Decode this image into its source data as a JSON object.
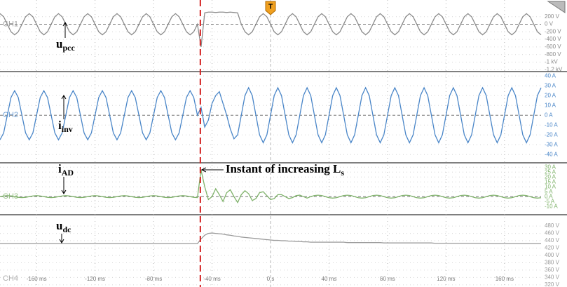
{
  "chart_data": {
    "type": "line",
    "x": [
      -185,
      -182.5,
      -180,
      -177.5,
      -175,
      -172.5,
      -170,
      -167.5,
      -165,
      -162.5,
      -160,
      -157.5,
      -155,
      -152.5,
      -150,
      -147.5,
      -145,
      -142.5,
      -140,
      -137.5,
      -135,
      -132.5,
      -130,
      -127.5,
      -125,
      -122.5,
      -120,
      -117.5,
      -115,
      -112.5,
      -110,
      -107.5,
      -105,
      -102.5,
      -100,
      -97.5,
      -95,
      -92.5,
      -90,
      -87.5,
      -85,
      -82.5,
      -80,
      -77.5,
      -75,
      -72.5,
      -70,
      -67.5,
      -65,
      -62.5,
      -60,
      -57.5,
      -55,
      -52.5,
      -50,
      -47.5,
      -45,
      -42.5,
      -40,
      -37.5,
      -35,
      -32.5,
      -30,
      -27.5,
      -25,
      -22.5,
      -20,
      -17.5,
      -15,
      -12.5,
      -10,
      -7.5,
      -5,
      -2.5,
      0,
      2.5,
      5,
      7.5,
      10,
      12.5,
      15,
      17.5,
      20,
      22.5,
      25,
      27.5,
      30,
      32.5,
      35,
      37.5,
      40,
      42.5,
      45,
      47.5,
      50,
      52.5,
      55,
      57.5,
      60,
      62.5,
      65,
      67.5,
      70,
      72.5,
      75,
      77.5,
      80,
      82.5,
      85,
      87.5,
      90,
      92.5,
      95,
      97.5,
      100,
      102.5,
      105,
      107.5,
      110,
      112.5,
      115,
      117.5,
      120,
      122.5,
      125,
      127.5,
      130,
      132.5,
      135,
      137.5,
      140,
      142.5,
      145,
      147.5,
      150,
      152.5,
      155,
      157.5,
      160,
      162.5,
      165,
      167.5,
      170,
      172.5,
      175,
      177.5,
      180,
      182.5,
      185
    ],
    "xlim": [
      -185,
      185
    ],
    "xticks": [
      {
        "value": -160,
        "label": "-160 ms"
      },
      {
        "value": -120,
        "label": "-120 ms"
      },
      {
        "value": -80,
        "label": "-80 ms"
      },
      {
        "value": -40,
        "label": "-40 ms"
      },
      {
        "value": 0,
        "label": "0 s"
      },
      {
        "value": 40,
        "label": "40 ms"
      },
      {
        "value": 80,
        "label": "80 ms"
      },
      {
        "value": 120,
        "label": "120 ms"
      },
      {
        "value": 160,
        "label": "160 ms"
      }
    ],
    "grid": true,
    "trigger_label": "T",
    "event_x": -48,
    "annotation": {
      "text": "Instant of increasing L",
      "sub": "s"
    },
    "series": [
      {
        "name": "CH1",
        "color": "#8a8a8a",
        "symbol": {
          "text": "u",
          "sub": "pcc"
        },
        "ylim": [
          -1250,
          640
        ],
        "yticks": [
          {
            "value": 200,
            "label": "200 V"
          },
          {
            "value": 0,
            "label": "0 V"
          },
          {
            "value": -200,
            "label": "-200 V"
          },
          {
            "value": -400,
            "label": "-400 V"
          },
          {
            "value": -600,
            "label": "-600 V"
          },
          {
            "value": -800,
            "label": "-800 V"
          },
          {
            "value": -1000,
            "label": "-1 kV"
          },
          {
            "value": -1200,
            "label": "-1.2 kV"
          }
        ],
        "values": [
          280,
          198,
          0,
          -198,
          -280,
          -198,
          0,
          198,
          280,
          198,
          0,
          -198,
          -280,
          -198,
          0,
          198,
          280,
          198,
          0,
          -198,
          -280,
          -198,
          0,
          198,
          280,
          198,
          0,
          -198,
          -280,
          -198,
          0,
          198,
          280,
          198,
          0,
          -198,
          -280,
          -198,
          0,
          198,
          280,
          198,
          0,
          -198,
          -280,
          -198,
          0,
          198,
          280,
          198,
          0,
          -198,
          -280,
          -198,
          0,
          -600,
          300,
          320,
          320,
          310,
          320,
          320,
          310,
          320,
          310,
          300,
          0,
          -198,
          -280,
          -198,
          0,
          198,
          280,
          198,
          0,
          -198,
          -280,
          -198,
          0,
          198,
          280,
          198,
          0,
          -198,
          -280,
          -198,
          0,
          198,
          280,
          198,
          0,
          -198,
          -280,
          -198,
          0,
          198,
          280,
          198,
          0,
          -198,
          -280,
          -198,
          0,
          198,
          280,
          198,
          0,
          -198,
          -280,
          -198,
          0,
          198,
          280,
          198,
          0,
          -198,
          -280,
          -198,
          0,
          198,
          280,
          198,
          0,
          -198,
          -280,
          -198,
          0,
          198,
          280,
          198,
          0,
          -198,
          -280,
          -198,
          0,
          198,
          280,
          198,
          0,
          -198,
          -280,
          -198,
          0,
          198,
          280,
          198,
          0,
          -198,
          -280
        ]
      },
      {
        "name": "CH2",
        "color": "#4a86c8",
        "symbol": {
          "text": "i",
          "sub": "inv"
        },
        "ylim": [
          -47,
          43
        ],
        "yticks": [
          {
            "value": 40,
            "label": "40 A"
          },
          {
            "value": 30,
            "label": "30 A"
          },
          {
            "value": 20,
            "label": "20 A"
          },
          {
            "value": 10,
            "label": "10 A"
          },
          {
            "value": 0,
            "label": "0 A"
          },
          {
            "value": -10,
            "label": "-10 A"
          },
          {
            "value": -20,
            "label": "-20 A"
          },
          {
            "value": -30,
            "label": "-30 A"
          },
          {
            "value": -40,
            "label": "-40 A"
          }
        ],
        "values": [
          -25,
          -18,
          0,
          18,
          25,
          18,
          0,
          -18,
          -25,
          -18,
          0,
          18,
          25,
          18,
          0,
          -18,
          -25,
          -18,
          0,
          18,
          25,
          18,
          0,
          -18,
          -25,
          -18,
          0,
          18,
          25,
          18,
          0,
          -18,
          -25,
          -18,
          0,
          18,
          25,
          18,
          0,
          -18,
          -25,
          -18,
          0,
          18,
          25,
          18,
          0,
          -18,
          -25,
          -18,
          0,
          18,
          25,
          18,
          0,
          8,
          -12,
          -5,
          12,
          20,
          24,
          12,
          0,
          -14,
          -24,
          -20,
          0,
          20,
          28,
          20,
          0,
          -20,
          -28,
          -20,
          0,
          20,
          28,
          20,
          0,
          -20,
          -28,
          -20,
          0,
          20,
          28,
          20,
          0,
          -20,
          -28,
          -20,
          0,
          20,
          28,
          20,
          0,
          -20,
          -28,
          -20,
          0,
          20,
          28,
          20,
          0,
          -20,
          -28,
          -20,
          0,
          20,
          28,
          20,
          0,
          -20,
          -28,
          -20,
          0,
          20,
          28,
          20,
          0,
          -20,
          -28,
          -20,
          0,
          20,
          28,
          20,
          0,
          -20,
          -28,
          -20,
          0,
          20,
          28,
          20,
          0,
          -20,
          -28,
          -20,
          0,
          20,
          28,
          20,
          0,
          -20,
          -28,
          -20,
          0,
          20,
          28
        ]
      },
      {
        "name": "CH3",
        "color": "#7fb26a",
        "symbol": {
          "text": "i",
          "sub": "AD"
        },
        "ylim": [
          -17,
          33
        ],
        "yticks": [
          {
            "value": 30,
            "label": "30 A"
          },
          {
            "value": 25,
            "label": "25 A"
          },
          {
            "value": 20,
            "label": "20 A"
          },
          {
            "value": 15,
            "label": "15 A"
          },
          {
            "value": 10,
            "label": "10 A"
          },
          {
            "value": 5,
            "label": "5 A"
          },
          {
            "value": 0,
            "label": "0 A"
          },
          {
            "value": -5,
            "label": "-5 A"
          },
          {
            "value": -10,
            "label": "-10 A"
          }
        ],
        "values": [
          0,
          0.7,
          1,
          0.7,
          0,
          -0.7,
          -1,
          -0.7,
          0,
          0.7,
          1,
          0.7,
          0,
          -0.7,
          -1,
          -0.7,
          0,
          0.7,
          1,
          0.7,
          0,
          -0.7,
          -1,
          -0.7,
          0,
          0.7,
          1,
          0.7,
          0,
          -0.7,
          -1,
          -0.7,
          0,
          0.7,
          1,
          0.7,
          0,
          -0.7,
          -1,
          -0.7,
          0,
          0.7,
          1,
          0.7,
          0,
          -0.7,
          -1,
          -0.7,
          0,
          0.7,
          1,
          0.7,
          0,
          -0.7,
          -1,
          27,
          10,
          -3,
          0,
          8,
          2,
          -5,
          4,
          7,
          0,
          -6,
          2,
          6,
          3,
          -4,
          -2,
          4,
          5,
          1,
          -3,
          -2,
          2,
          2,
          0,
          -2,
          -1,
          1,
          1.5,
          0,
          -1.5,
          0,
          1.1,
          1.5,
          1.1,
          0,
          -1.1,
          -1.5,
          -1.1,
          0,
          1.1,
          1.5,
          1.1,
          0,
          -1.1,
          -1.5,
          -1.1,
          0,
          1.1,
          1.5,
          1.1,
          0,
          -1.1,
          -1.5,
          -1.1,
          0,
          1.1,
          1.5,
          1.1,
          0,
          -1.1,
          -1.5,
          -1.1,
          0,
          1.1,
          1.5,
          1.1,
          0,
          -1.1,
          -1.5,
          -1.1,
          0,
          1.1,
          1.5,
          1.1,
          0,
          -1.1,
          -1.5,
          -1.1,
          0,
          1.1,
          1.5,
          1.1,
          0,
          -1.1,
          -1.5,
          -1.1,
          0,
          1.1,
          1.5,
          1.1,
          0,
          -1.1,
          -1.5,
          -1.1
        ]
      },
      {
        "name": "CH4",
        "color": "#9a9a9a",
        "symbol": {
          "text": "u",
          "sub": "dc"
        },
        "ylim": [
          314,
          507
        ],
        "yticks": [
          {
            "value": 480,
            "label": "480 V"
          },
          {
            "value": 460,
            "label": "460 V"
          },
          {
            "value": 440,
            "label": "440 V"
          },
          {
            "value": 420,
            "label": "420 V"
          },
          {
            "value": 400,
            "label": "400 V"
          },
          {
            "value": 380,
            "label": "380 V"
          },
          {
            "value": 360,
            "label": "360 V"
          },
          {
            "value": 340,
            "label": "340 V"
          },
          {
            "value": 320,
            "label": "320 V"
          }
        ],
        "values": [
          432,
          432,
          432,
          432,
          432,
          432,
          432,
          432,
          432,
          432,
          432,
          432,
          432,
          432,
          432,
          432,
          432,
          432,
          432,
          432,
          432,
          432,
          432,
          432,
          432,
          432,
          432,
          432,
          432,
          432,
          432,
          432,
          432,
          432,
          432,
          432,
          432,
          432,
          432,
          432,
          432,
          432,
          432,
          432,
          432,
          432,
          432,
          432,
          432,
          432,
          432,
          432,
          432,
          432,
          432,
          445,
          455,
          460,
          461,
          460,
          459,
          458,
          456,
          455,
          453,
          452,
          450,
          449,
          448,
          447,
          446,
          445,
          444,
          443,
          442,
          441,
          441,
          440,
          440,
          439,
          439,
          438,
          438,
          437,
          437,
          436,
          436,
          436,
          436,
          436,
          436,
          436,
          436,
          436,
          436,
          435,
          435,
          435,
          435,
          435,
          435,
          435,
          435,
          435,
          435,
          434,
          434,
          434,
          434,
          434,
          434,
          434,
          434,
          434,
          434,
          434,
          434,
          434,
          434,
          433,
          433,
          433,
          433,
          433,
          433,
          433,
          433,
          433,
          433,
          433,
          433,
          433,
          433,
          433,
          432,
          432,
          432,
          432,
          432,
          432,
          432,
          432,
          432,
          432,
          432,
          432,
          432,
          432,
          432
        ]
      }
    ]
  }
}
